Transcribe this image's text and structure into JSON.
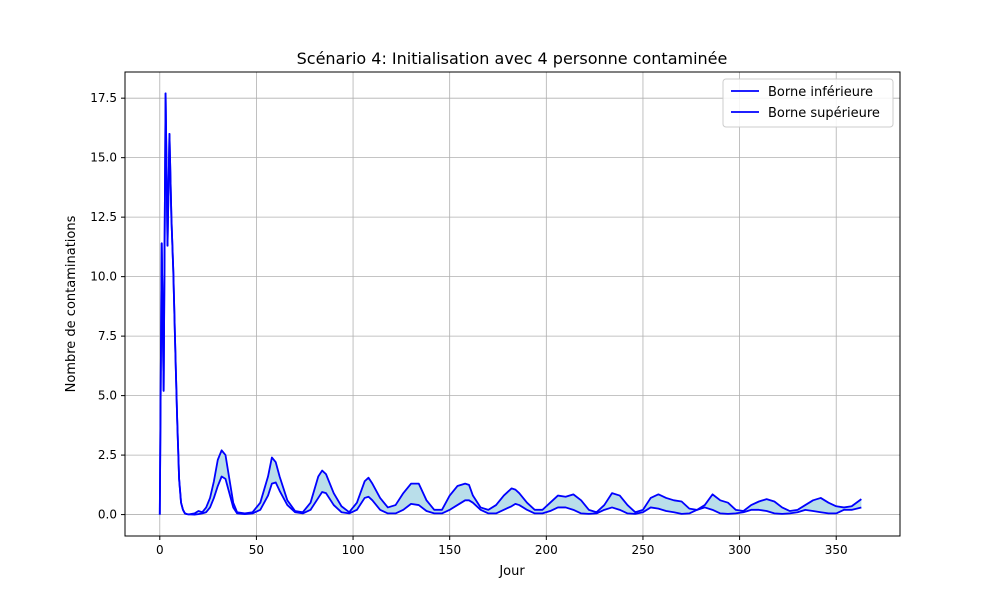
{
  "chart_data": {
    "type": "line",
    "title": "Scénario 4: Initialisation avec 4 personne contaminée",
    "xlabel": "Jour",
    "ylabel": "Nombre de contaminations",
    "xlim": [
      -18,
      383
    ],
    "ylim": [
      -0.9,
      18.6
    ],
    "xticks": [
      0,
      50,
      100,
      150,
      200,
      250,
      300,
      350
    ],
    "yticks": [
      0.0,
      2.5,
      5.0,
      7.5,
      10.0,
      12.5,
      15.0,
      17.5
    ],
    "xtick_labels": [
      "0",
      "50",
      "100",
      "150",
      "200",
      "250",
      "300",
      "350"
    ],
    "ytick_labels": [
      "0.0",
      "2.5",
      "5.0",
      "7.5",
      "10.0",
      "12.5",
      "15.0",
      "17.5"
    ],
    "grid": true,
    "legend_position": "top-right",
    "fill_between": true,
    "colors": {
      "line": "#0000ff",
      "fill": "#add8e6",
      "grid": "#b0b0b0"
    },
    "series": [
      {
        "name": "Borne inférieure",
        "x": [
          0,
          1,
          2,
          3,
          4,
          5,
          6,
          7,
          8,
          9,
          10,
          11,
          12,
          13,
          14,
          15,
          18,
          20,
          22,
          24,
          26,
          28,
          30,
          32,
          34,
          36,
          38,
          40,
          44,
          48,
          52,
          56,
          58,
          60,
          62,
          66,
          70,
          74,
          78,
          82,
          84,
          86,
          90,
          94,
          98,
          102,
          106,
          108,
          110,
          114,
          118,
          122,
          126,
          130,
          134,
          138,
          142,
          146,
          150,
          154,
          158,
          160,
          162,
          166,
          170,
          174,
          178,
          182,
          184,
          186,
          190,
          194,
          198,
          202,
          206,
          210,
          214,
          218,
          222,
          226,
          230,
          234,
          238,
          242,
          246,
          250,
          254,
          258,
          262,
          266,
          270,
          274,
          278,
          282,
          286,
          290,
          294,
          298,
          302,
          306,
          310,
          314,
          318,
          322,
          326,
          330,
          334,
          338,
          342,
          346,
          350,
          354,
          358,
          363
        ],
        "y": [
          0,
          11.4,
          5.2,
          17.7,
          11.3,
          16.0,
          12.5,
          10.2,
          7.0,
          4.0,
          1.5,
          0.5,
          0.2,
          0.05,
          0.02,
          0.01,
          0.0,
          0.02,
          0.05,
          0.1,
          0.3,
          0.7,
          1.2,
          1.6,
          1.5,
          0.9,
          0.3,
          0.05,
          0.02,
          0.05,
          0.2,
          0.8,
          1.3,
          1.35,
          1.0,
          0.4,
          0.1,
          0.05,
          0.2,
          0.7,
          0.95,
          0.9,
          0.4,
          0.1,
          0.05,
          0.2,
          0.7,
          0.75,
          0.6,
          0.2,
          0.05,
          0.05,
          0.2,
          0.45,
          0.4,
          0.15,
          0.05,
          0.05,
          0.2,
          0.4,
          0.6,
          0.6,
          0.5,
          0.2,
          0.05,
          0.05,
          0.2,
          0.35,
          0.45,
          0.4,
          0.2,
          0.05,
          0.05,
          0.15,
          0.3,
          0.3,
          0.2,
          0.05,
          0.03,
          0.05,
          0.2,
          0.3,
          0.2,
          0.05,
          0.03,
          0.1,
          0.3,
          0.25,
          0.15,
          0.1,
          0.03,
          0.05,
          0.2,
          0.3,
          0.2,
          0.05,
          0.03,
          0.05,
          0.1,
          0.2,
          0.2,
          0.15,
          0.05,
          0.03,
          0.05,
          0.1,
          0.2,
          0.15,
          0.1,
          0.05,
          0.05,
          0.2,
          0.2,
          0.3
        ]
      },
      {
        "name": "Borne supérieure",
        "x": [
          0,
          1,
          2,
          3,
          4,
          5,
          6,
          7,
          8,
          9,
          10,
          11,
          12,
          13,
          14,
          15,
          18,
          20,
          22,
          24,
          26,
          28,
          30,
          32,
          34,
          36,
          38,
          40,
          44,
          48,
          52,
          56,
          58,
          60,
          62,
          66,
          70,
          74,
          78,
          82,
          84,
          86,
          90,
          94,
          98,
          102,
          106,
          108,
          110,
          114,
          118,
          122,
          126,
          130,
          134,
          138,
          142,
          146,
          150,
          154,
          158,
          160,
          162,
          166,
          170,
          174,
          178,
          182,
          184,
          186,
          190,
          194,
          198,
          202,
          206,
          210,
          214,
          218,
          222,
          226,
          230,
          234,
          238,
          242,
          246,
          250,
          254,
          258,
          262,
          266,
          270,
          274,
          278,
          282,
          286,
          290,
          294,
          298,
          302,
          306,
          310,
          314,
          318,
          322,
          326,
          330,
          334,
          338,
          342,
          346,
          350,
          354,
          358,
          363
        ],
        "y": [
          0,
          11.4,
          5.2,
          17.7,
          11.3,
          16.0,
          12.5,
          10.2,
          7.0,
          4.0,
          1.5,
          0.5,
          0.2,
          0.05,
          0.02,
          0.01,
          0.05,
          0.15,
          0.1,
          0.3,
          0.7,
          1.4,
          2.3,
          2.7,
          2.5,
          1.5,
          0.5,
          0.1,
          0.05,
          0.1,
          0.5,
          1.6,
          2.4,
          2.2,
          1.6,
          0.6,
          0.15,
          0.1,
          0.5,
          1.6,
          1.85,
          1.7,
          0.9,
          0.35,
          0.1,
          0.5,
          1.4,
          1.55,
          1.3,
          0.7,
          0.3,
          0.4,
          0.9,
          1.3,
          1.3,
          0.6,
          0.2,
          0.2,
          0.8,
          1.2,
          1.3,
          1.25,
          0.8,
          0.3,
          0.2,
          0.4,
          0.8,
          1.1,
          1.05,
          0.9,
          0.5,
          0.2,
          0.2,
          0.5,
          0.8,
          0.75,
          0.85,
          0.6,
          0.2,
          0.1,
          0.4,
          0.9,
          0.8,
          0.4,
          0.1,
          0.2,
          0.7,
          0.85,
          0.7,
          0.6,
          0.55,
          0.25,
          0.2,
          0.4,
          0.85,
          0.6,
          0.5,
          0.2,
          0.15,
          0.4,
          0.55,
          0.65,
          0.55,
          0.3,
          0.15,
          0.2,
          0.4,
          0.6,
          0.7,
          0.5,
          0.35,
          0.3,
          0.35,
          0.65
        ]
      }
    ]
  }
}
